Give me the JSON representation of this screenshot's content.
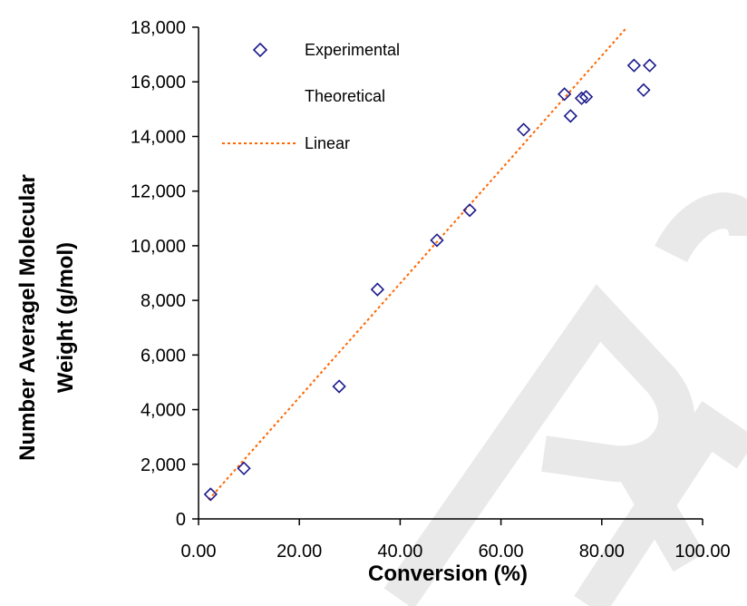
{
  "chart_data": {
    "type": "scatter",
    "xlabel": "Conversion (%)",
    "ylabel_line1": "Number Averagel Molecular",
    "ylabel_line2": "Weight (g/mol)",
    "xlim": [
      0,
      100
    ],
    "ylim": [
      0,
      18000
    ],
    "x_ticks": [
      "0.00",
      "20.00",
      "40.00",
      "60.00",
      "80.00",
      "100.00"
    ],
    "y_ticks": [
      "0",
      "2,000",
      "4,000",
      "6,000",
      "8,000",
      "10,000",
      "12,000",
      "14,000",
      "16,000",
      "18,000"
    ],
    "grid": false,
    "legend_position": "top-left",
    "legend": {
      "experimental": "Experimental",
      "theoretical": "Theoretical",
      "linear": "Linear"
    },
    "series": [
      {
        "name": "Experimental",
        "marker": "diamond-open",
        "color": "#1a1a8c",
        "x": [
          2.4,
          9.0,
          27.9,
          35.5,
          47.3,
          53.8,
          64.5,
          72.6,
          73.8,
          76.0,
          76.9,
          86.4,
          88.3,
          89.5
        ],
        "y": [
          900,
          1850,
          4850,
          8400,
          10200,
          11300,
          14250,
          15550,
          14750,
          15400,
          15450,
          16600,
          15700,
          16600
        ]
      },
      {
        "name": "Theoretical",
        "x": [],
        "y": []
      },
      {
        "name": "Linear",
        "style": "dotted",
        "color": "#ff6600",
        "x": [
          2.0,
          85.0
        ],
        "y": [
          700,
          18000
        ]
      }
    ]
  }
}
